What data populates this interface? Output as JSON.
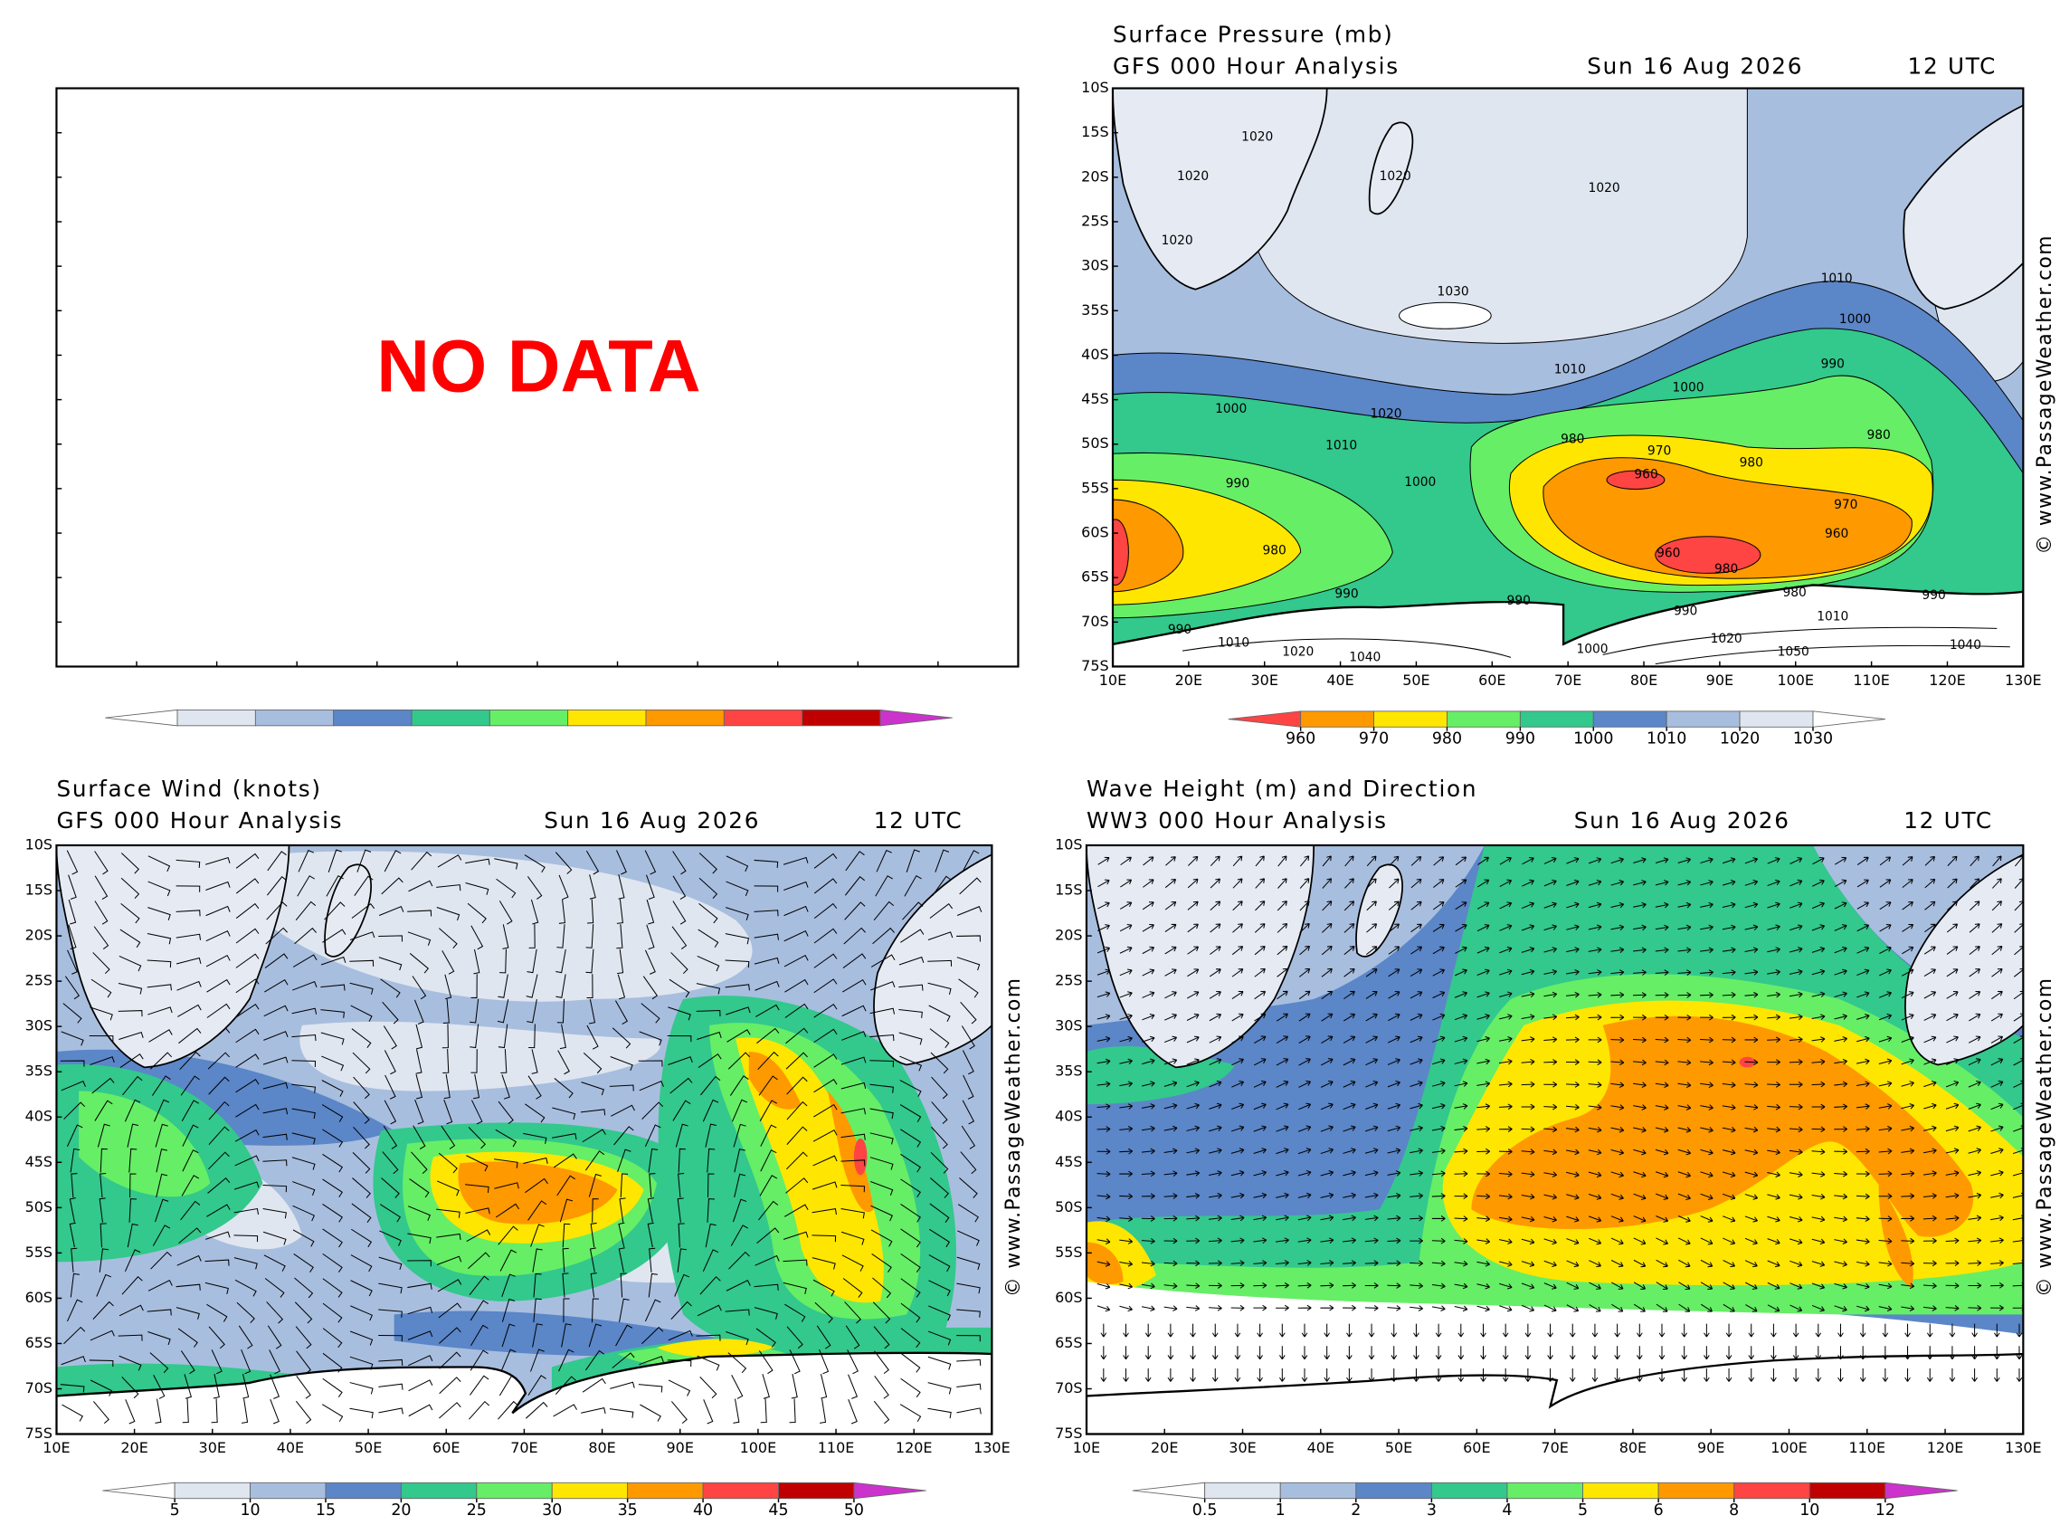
{
  "panels": [
    {
      "message": "NO DATA",
      "colorbar": {
        "colors": [
          "#ffffff",
          "#dfe6f0",
          "#a8bedf",
          "#5b86c8",
          "#33c88c",
          "#66ee66",
          "#ffe600",
          "#ff9900",
          "#ff4444",
          "#c00000",
          "#cc33cc"
        ]
      }
    },
    {
      "title": "Surface Pressure (mb)",
      "subtitle": "GFS 000 Hour Analysis",
      "date": "Sun 16 Aug 2026",
      "time": "12 UTC",
      "latitudes": [
        "10S",
        "15S",
        "20S",
        "25S",
        "30S",
        "35S",
        "40S",
        "45S",
        "50S",
        "55S",
        "60S",
        "65S",
        "70S",
        "75S"
      ],
      "longitudes": [
        "10E",
        "20E",
        "30E",
        "40E",
        "50E",
        "60E",
        "70E",
        "80E",
        "90E",
        "100E",
        "110E",
        "120E",
        "130E"
      ],
      "contour_labels": [
        1020,
        1020,
        1020,
        1020,
        1020,
        1030,
        1010,
        1000,
        1010,
        1000,
        990,
        1000,
        1020,
        1010,
        980,
        970,
        980,
        960,
        1000,
        990,
        980,
        970,
        960,
        980,
        960,
        980,
        990,
        990,
        990,
        980,
        1010,
        990,
        1040,
        1000,
        1020,
        1050,
        1010,
        1020,
        1040,
        990
      ],
      "colorbar": {
        "levels": [
          960,
          970,
          980,
          990,
          1000,
          1010,
          1020,
          1030
        ],
        "colors": [
          "#ff4444",
          "#ff9900",
          "#ffe600",
          "#66ee66",
          "#33c88c",
          "#5b86c8",
          "#a8bedf",
          "#dfe6f0",
          "#ffffff"
        ]
      },
      "credit": "© www.PassageWeather.com"
    },
    {
      "title": "Surface Wind (knots)",
      "subtitle": "GFS 000 Hour Analysis",
      "date": "Sun 16 Aug 2026",
      "time": "12 UTC",
      "latitudes": [
        "10S",
        "15S",
        "20S",
        "25S",
        "30S",
        "35S",
        "40S",
        "45S",
        "50S",
        "55S",
        "60S",
        "65S",
        "70S",
        "75S"
      ],
      "longitudes": [
        "10E",
        "20E",
        "30E",
        "40E",
        "50E",
        "60E",
        "70E",
        "80E",
        "90E",
        "100E",
        "110E",
        "120E",
        "130E"
      ],
      "colorbar": {
        "levels": [
          5,
          10,
          15,
          20,
          25,
          30,
          35,
          40,
          45,
          50
        ],
        "colors": [
          "#ffffff",
          "#dfe6f0",
          "#a8bedf",
          "#5b86c8",
          "#33c88c",
          "#66ee66",
          "#ffe600",
          "#ff9900",
          "#ff4444",
          "#c00000",
          "#cc33cc"
        ]
      },
      "credit": "© www.PassageWeather.com"
    },
    {
      "title": "Wave Height (m) and Direction",
      "subtitle": "WW3 000 Hour Analysis",
      "date": "Sun 16 Aug 2026",
      "time": "12 UTC",
      "latitudes": [
        "10S",
        "15S",
        "20S",
        "25S",
        "30S",
        "35S",
        "40S",
        "45S",
        "50S",
        "55S",
        "60S",
        "65S",
        "70S",
        "75S"
      ],
      "longitudes": [
        "10E",
        "20E",
        "30E",
        "40E",
        "50E",
        "60E",
        "70E",
        "80E",
        "90E",
        "100E",
        "110E",
        "120E",
        "130E"
      ],
      "colorbar": {
        "levels": [
          0.5,
          1,
          2,
          3,
          4,
          5,
          6,
          8,
          10,
          12
        ],
        "colors": [
          "#ffffff",
          "#dfe6f0",
          "#a8bedf",
          "#5b86c8",
          "#33c88c",
          "#66ee66",
          "#ffe600",
          "#ff9900",
          "#ff4444",
          "#c00000",
          "#cc33cc"
        ]
      },
      "credit": "© www.PassageWeather.com"
    }
  ]
}
